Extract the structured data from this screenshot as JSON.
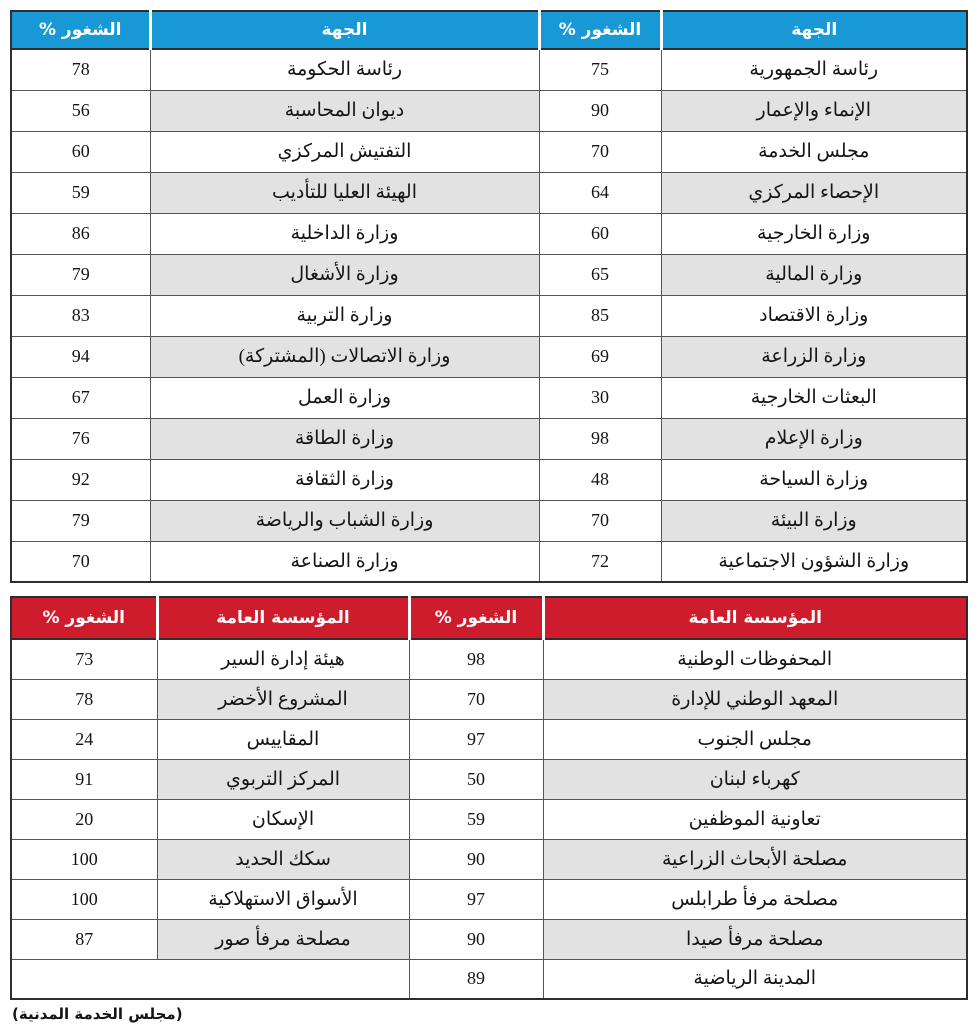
{
  "page": {
    "caption": "(مجلس الخدمة المدنية)"
  },
  "colors": {
    "table1_header_bg": "#1898D5",
    "table2_header_bg": "#CE1C2C",
    "header_text": "#FFFFFF",
    "row_bg": "#FFFFFF",
    "row_alt_bg": "#E2E2E2",
    "grid_border": "#565656",
    "outer_border": "#2E2E2E",
    "body_text": "#151515"
  },
  "table1": {
    "name": "vacancy-by-entity",
    "headers": [
      "الشغور %",
      "الجهة",
      "الشغور %",
      "الجهة"
    ],
    "rows": [
      [
        78,
        "رئاسة الحكومة",
        75,
        "رئاسة الجمهورية"
      ],
      [
        56,
        "ديوان المحاسبة",
        90,
        "الإنماء والإعمار"
      ],
      [
        60,
        "التفتيش المركزي",
        70,
        "مجلس الخدمة"
      ],
      [
        59,
        "الهيئة العليا للتأديب",
        64,
        "الإحصاء المركزي"
      ],
      [
        86,
        "وزارة الداخلية",
        60,
        "وزارة الخارجية"
      ],
      [
        79,
        "وزارة الأشغال",
        65,
        "وزارة المالية"
      ],
      [
        83,
        "وزارة التربية",
        85,
        "وزارة الاقتصاد"
      ],
      [
        94,
        "وزارة الاتصالات (المشتركة)",
        69,
        "وزارة الزراعة"
      ],
      [
        67,
        "وزارة العمل",
        30,
        "البعثات الخارجية"
      ],
      [
        76,
        "وزارة الطاقة",
        98,
        "وزارة الإعلام"
      ],
      [
        92,
        "وزارة الثقافة",
        48,
        "وزارة السياحة"
      ],
      [
        79,
        "وزارة الشباب والرياضة",
        70,
        "وزارة البيئة"
      ],
      [
        70,
        "وزارة الصناعة",
        72,
        "وزارة الشؤون الاجتماعية"
      ]
    ]
  },
  "table2": {
    "name": "vacancy-by-public-institution",
    "headers": [
      "الشغور %",
      "المؤسسة العامة",
      "الشغور %",
      "المؤسسة العامة"
    ],
    "rows": [
      [
        73,
        "هيئة إدارة السير",
        98,
        "المحفوظات الوطنية"
      ],
      [
        78,
        "المشروع الأخضر",
        70,
        "المعهد الوطني للإدارة"
      ],
      [
        24,
        "المقاييس",
        97,
        "مجلس الجنوب"
      ],
      [
        91,
        "المركز التربوي",
        50,
        "كهرباء لبنان"
      ],
      [
        20,
        "الإسكان",
        59,
        "تعاونية الموظفين"
      ],
      [
        100,
        "سكك الحديد",
        90,
        "مصلحة الأبحاث الزراعية"
      ],
      [
        100,
        "الأسواق الاستهلاكية",
        97,
        "مصلحة مرفأ طرابلس"
      ],
      [
        87,
        "مصلحة مرفأ صور",
        90,
        "مصلحة مرفأ صيدا"
      ],
      [
        null,
        null,
        89,
        "المدينة الرياضية"
      ]
    ]
  }
}
